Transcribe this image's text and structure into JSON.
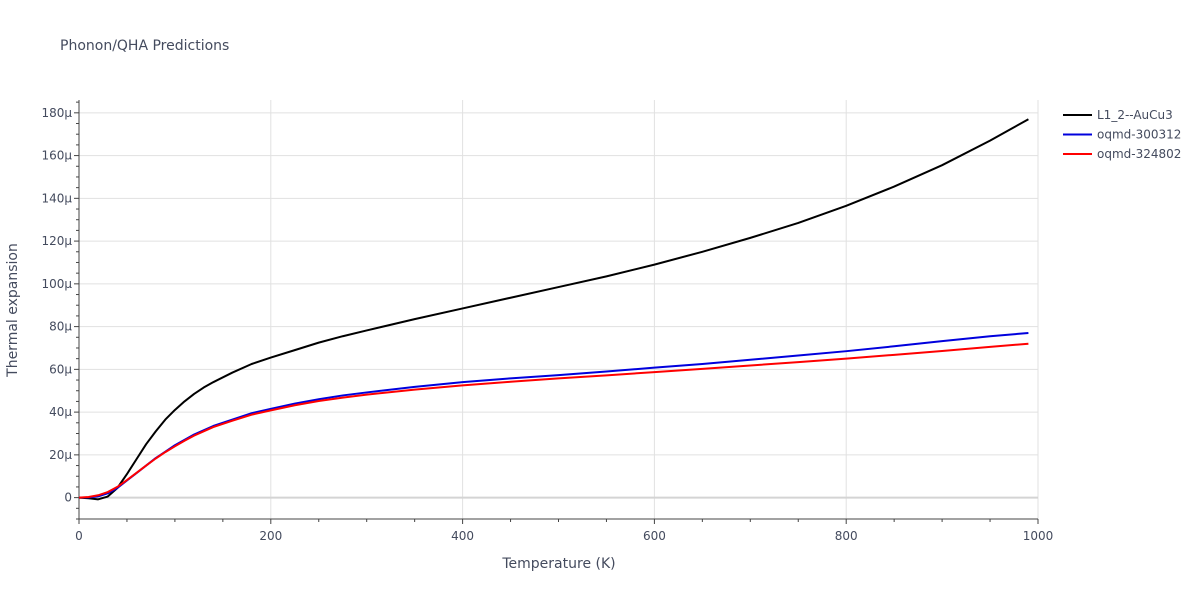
{
  "chart_data": {
    "type": "line",
    "title": "Phonon/QHA Predictions",
    "xlabel": "Temperature (K)",
    "ylabel": "Thermal expansion",
    "xlim": [
      0,
      1000
    ],
    "ylim": [
      -10,
      186
    ],
    "x_ticks": [
      0,
      200,
      400,
      600,
      800,
      1000
    ],
    "x_tick_labels": [
      "0",
      "200",
      "400",
      "600",
      "800",
      "1000"
    ],
    "y_ticks": [
      0,
      20,
      40,
      60,
      80,
      100,
      120,
      140,
      160,
      180
    ],
    "y_tick_labels": [
      "0",
      "20μ",
      "40μ",
      "60μ",
      "80μ",
      "100μ",
      "120μ",
      "140μ",
      "160μ",
      "180μ"
    ],
    "grid": true,
    "legend_position": "top-right",
    "series": [
      {
        "name": "L1_2--AuCu3",
        "color": "#000000",
        "x": [
          0,
          10,
          20,
          30,
          40,
          50,
          60,
          70,
          80,
          90,
          100,
          110,
          120,
          130,
          140,
          160,
          180,
          200,
          225,
          250,
          275,
          300,
          350,
          400,
          450,
          500,
          550,
          600,
          650,
          700,
          750,
          800,
          850,
          900,
          950,
          990
        ],
        "y": [
          0,
          -0.3,
          -0.8,
          0.5,
          4.5,
          11,
          18,
          25,
          31,
          36.5,
          41,
          45,
          48.5,
          51.5,
          54,
          58.5,
          62.5,
          65.5,
          69,
          72.5,
          75.5,
          78.2,
          83.5,
          88.5,
          93.5,
          98.5,
          103.5,
          109,
          115,
          121.5,
          128.5,
          136.5,
          145.5,
          155.5,
          167,
          177
        ]
      },
      {
        "name": "oqmd-300312",
        "color": "#0000dd",
        "x": [
          0,
          10,
          20,
          30,
          40,
          50,
          60,
          70,
          80,
          90,
          100,
          110,
          120,
          130,
          140,
          160,
          180,
          200,
          225,
          250,
          275,
          300,
          350,
          400,
          450,
          500,
          550,
          600,
          650,
          700,
          750,
          800,
          850,
          900,
          950,
          990
        ],
        "y": [
          0,
          0.1,
          0.6,
          2,
          4.5,
          8,
          11.5,
          15,
          18.5,
          21.5,
          24.5,
          27,
          29.5,
          31.5,
          33.5,
          36.5,
          39.5,
          41.5,
          44,
          46,
          47.8,
          49.2,
          51.8,
          54,
          55.8,
          57.3,
          59,
          60.8,
          62.5,
          64.5,
          66.5,
          68.5,
          70.8,
          73.2,
          75.5,
          77
        ]
      },
      {
        "name": "oqmd-324802",
        "color": "#ff0000",
        "x": [
          0,
          10,
          20,
          30,
          40,
          50,
          60,
          70,
          80,
          90,
          100,
          110,
          120,
          130,
          140,
          160,
          180,
          200,
          225,
          250,
          275,
          300,
          350,
          400,
          450,
          500,
          550,
          600,
          650,
          700,
          750,
          800,
          850,
          900,
          950,
          990
        ],
        "y": [
          0,
          0.3,
          1.1,
          2.6,
          5,
          8.2,
          11.6,
          15,
          18.3,
          21.3,
          24,
          26.6,
          29,
          31,
          33,
          36,
          38.8,
          40.8,
          43.2,
          45.2,
          46.8,
          48.2,
          50.5,
          52.5,
          54.2,
          55.8,
          57.2,
          58.7,
          60.2,
          61.8,
          63.4,
          65,
          66.8,
          68.6,
          70.5,
          72
        ]
      }
    ]
  }
}
